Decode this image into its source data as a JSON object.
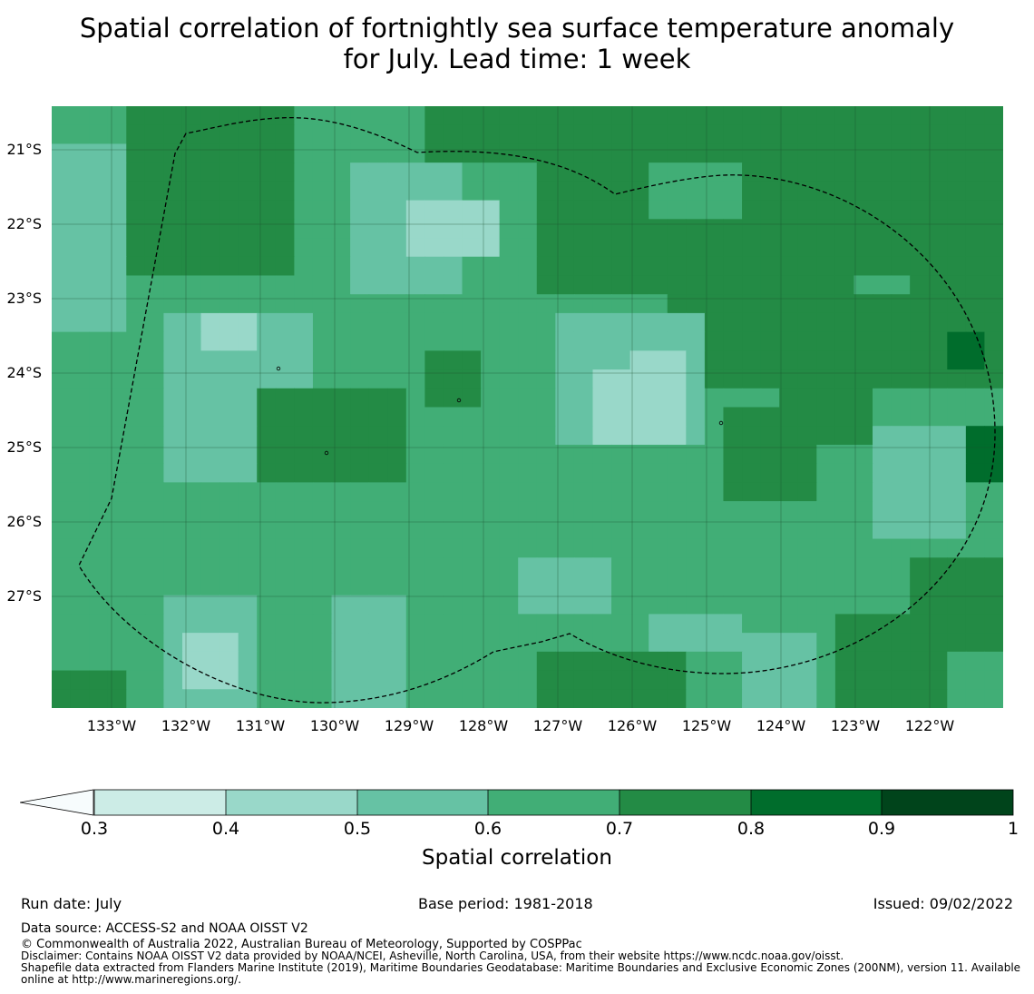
{
  "title_line1": "Spatial correlation of fortnightly sea surface temperature anomaly",
  "title_line2": "for July. Lead time: 1 week",
  "lat_labels": [
    "21°S",
    "22°S",
    "23°S",
    "24°S",
    "25°S",
    "26°S",
    "27°S"
  ],
  "lon_labels": [
    "133°W",
    "132°W",
    "131°W",
    "130°W",
    "129°W",
    "128°W",
    "127°W",
    "126°W",
    "125°W",
    "124°W",
    "123°W",
    "122°W"
  ],
  "colorbar": {
    "label": "Spatial correlation",
    "ticks": [
      "0.3",
      "0.4",
      "0.5",
      "0.6",
      "0.7",
      "0.8",
      "0.9",
      "1"
    ],
    "levels": [
      0.3,
      0.4,
      0.5,
      0.6,
      0.7,
      0.8,
      0.9,
      1.0
    ],
    "under_color": "#f7fcfd",
    "colors": [
      "#ccece6",
      "#99d8c9",
      "#66c2a4",
      "#41ae76",
      "#238b45",
      "#006d2c",
      "#00441b"
    ]
  },
  "footer": {
    "run_date": "Run date: July",
    "base_period": "Base period: 1981-2018",
    "issued": "Issued: 09/02/2022",
    "data_source": "Data source: ACCESS-S2 and NOAA OISST V2",
    "copyright": "© Commonwealth of Australia 2022, Australian Bureau of Meteorology, Supported by COSPPac",
    "disclaimer": "Disclaimer: Contains NOAA OISST V2 data provided by NOAA/NCEI, Asheville, North Carolina, USA, from their website https://www.ncdc.noaa.gov/oisst.",
    "shapefile": "Shapefile data extracted from Flanders Marine Institute (2019), Maritime Boundaries Geodatabase: Maritime Boundaries and Exclusive Economic Zones (200NM), version 11. Available online at http://www.marineregions.org/."
  }
}
